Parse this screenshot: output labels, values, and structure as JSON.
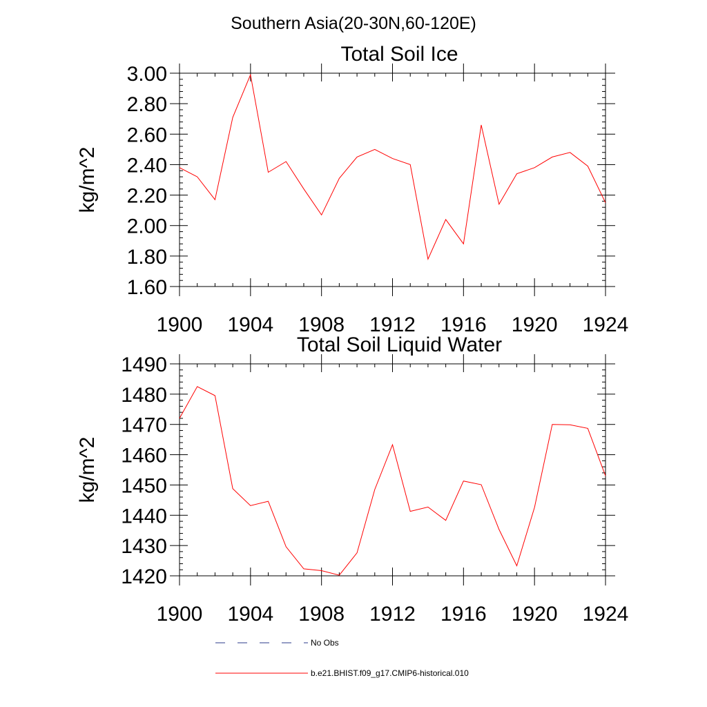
{
  "figure": {
    "title": "Southern Asia(20-30N,60-120E)"
  },
  "colors": {
    "series_line": "#ff0000",
    "obs_line": "#2b3a8a",
    "axis": "#000000"
  },
  "chart_data": [
    {
      "type": "line",
      "title": "Total Soil Ice",
      "xlabel": "",
      "ylabel": "kg/m^2",
      "xlim": [
        1900,
        1924
      ],
      "ylim": [
        1.6,
        3.0
      ],
      "xticks": [
        1900,
        1904,
        1908,
        1912,
        1916,
        1920,
        1924
      ],
      "xtick_labels": [
        "1900",
        "1904",
        "1908",
        "1912",
        "1916",
        "1920",
        "1924"
      ],
      "yticks": [
        1.6,
        1.8,
        2.0,
        2.2,
        2.4,
        2.6,
        2.8,
        3.0
      ],
      "ytick_labels": [
        "1.60",
        "1.80",
        "2.00",
        "2.20",
        "2.40",
        "2.60",
        "2.80",
        "3.00"
      ],
      "grid": false,
      "x": [
        1900,
        1901,
        1902,
        1903,
        1904,
        1905,
        1906,
        1907,
        1908,
        1909,
        1910,
        1911,
        1912,
        1913,
        1914,
        1915,
        1916,
        1917,
        1918,
        1919,
        1920,
        1921,
        1922,
        1923,
        1924
      ],
      "series": [
        {
          "name": "b.e21.BHIST.f09_g17.CMIP6-historical.010",
          "values": [
            2.38,
            2.32,
            2.17,
            2.71,
            2.99,
            2.35,
            2.42,
            2.24,
            2.07,
            2.31,
            2.45,
            2.5,
            2.44,
            2.4,
            1.78,
            2.04,
            1.88,
            2.66,
            2.14,
            2.34,
            2.38,
            2.45,
            2.48,
            2.39,
            2.15
          ]
        }
      ]
    },
    {
      "type": "line",
      "title": "Total Soil Liquid Water",
      "xlabel": "",
      "ylabel": "kg/m^2",
      "xlim": [
        1900,
        1924
      ],
      "ylim": [
        1420,
        1490
      ],
      "xticks": [
        1900,
        1904,
        1908,
        1912,
        1916,
        1920,
        1924
      ],
      "xtick_labels": [
        "1900",
        "1904",
        "1908",
        "1912",
        "1916",
        "1920",
        "1924"
      ],
      "yticks": [
        1420,
        1430,
        1440,
        1450,
        1460,
        1470,
        1480,
        1490
      ],
      "ytick_labels": [
        "1420",
        "1430",
        "1440",
        "1450",
        "1460",
        "1470",
        "1480",
        "1490"
      ],
      "grid": false,
      "x": [
        1900,
        1901,
        1902,
        1903,
        1904,
        1905,
        1906,
        1907,
        1908,
        1909,
        1910,
        1911,
        1912,
        1913,
        1914,
        1915,
        1916,
        1917,
        1918,
        1919,
        1920,
        1921,
        1922,
        1923,
        1924
      ],
      "series": [
        {
          "name": "b.e21.BHIST.f09_g17.CMIP6-historical.010",
          "values": [
            1472,
            1482.5,
            1479.5,
            1448.8,
            1443.2,
            1444.6,
            1429.6,
            1422.3,
            1421.7,
            1420.2,
            1427.6,
            1448.5,
            1463.3,
            1441.3,
            1442.7,
            1438.3,
            1451.3,
            1450.1,
            1435.3,
            1423.3,
            1442.6,
            1470,
            1469.9,
            1468.7,
            1453
          ]
        }
      ]
    }
  ],
  "legend": {
    "position": "bottom",
    "items": [
      {
        "label": "No Obs",
        "style": "dashed"
      },
      {
        "label": "b.e21.BHIST.f09_g17.CMIP6-historical.010",
        "style": "solid"
      }
    ]
  }
}
